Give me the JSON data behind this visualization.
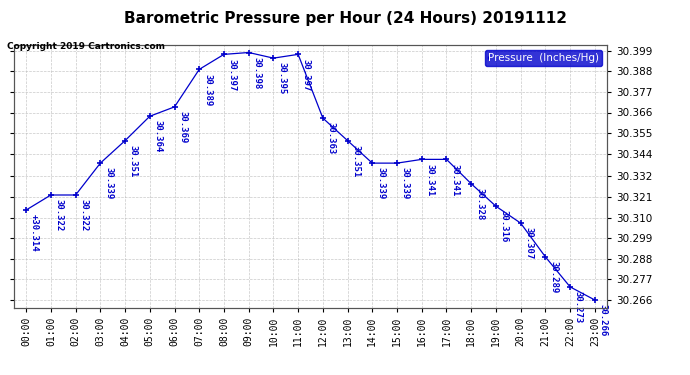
{
  "title": "Barometric Pressure per Hour (24 Hours) 20191112",
  "copyright": "Copyright 2019 Cartronics.com",
  "legend_label": "Pressure  (Inches/Hg)",
  "hours": [
    "00:00",
    "01:00",
    "02:00",
    "03:00",
    "04:00",
    "05:00",
    "06:00",
    "07:00",
    "08:00",
    "09:00",
    "10:00",
    "11:00",
    "12:00",
    "13:00",
    "14:00",
    "15:00",
    "16:00",
    "17:00",
    "18:00",
    "19:00",
    "20:00",
    "21:00",
    "22:00",
    "23:00"
  ],
  "pressure": [
    30.314,
    30.322,
    30.322,
    30.339,
    30.351,
    30.364,
    30.369,
    30.389,
    30.397,
    30.398,
    30.395,
    30.397,
    30.363,
    30.351,
    30.339,
    30.339,
    30.341,
    30.341,
    30.328,
    30.316,
    30.307,
    30.289,
    30.273,
    30.266
  ],
  "line_color": "#0000cc",
  "marker": "+",
  "bg_color": "#ffffff",
  "grid_color": "#bbbbbb",
  "ylim_min": 30.262,
  "ylim_max": 30.402,
  "yticks": [
    30.266,
    30.277,
    30.288,
    30.299,
    30.31,
    30.321,
    30.332,
    30.344,
    30.355,
    30.366,
    30.377,
    30.388,
    30.399
  ],
  "title_fontsize": 11,
  "annotation_fontsize": 6.5,
  "legend_bg": "#0000cc",
  "legend_text_color": "#ffffff"
}
